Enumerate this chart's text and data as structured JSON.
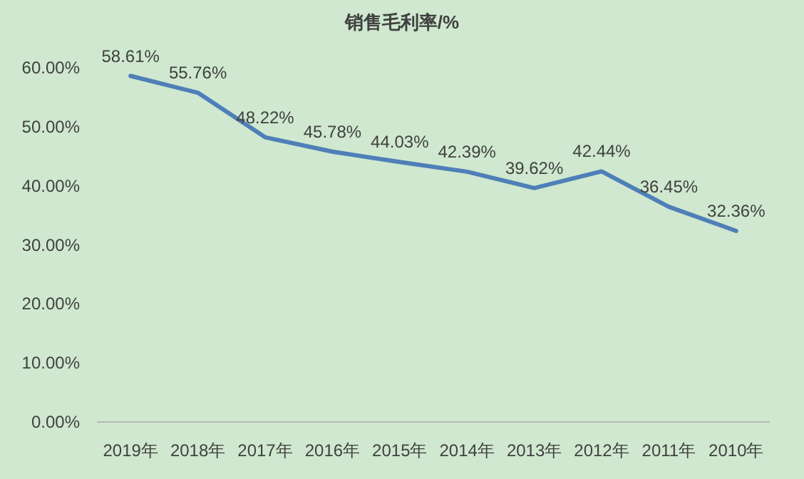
{
  "chart_data": {
    "type": "line",
    "title": "销售毛利率/%",
    "categories": [
      "2019年",
      "2018年",
      "2017年",
      "2016年",
      "2015年",
      "2014年",
      "2013年",
      "2012年",
      "2011年",
      "2010年"
    ],
    "values": [
      58.61,
      55.76,
      48.22,
      45.78,
      44.03,
      42.39,
      39.62,
      42.44,
      36.45,
      32.36
    ],
    "value_labels": [
      "58.61%",
      "55.76%",
      "48.22%",
      "45.78%",
      "44.03%",
      "42.39%",
      "39.62%",
      "42.44%",
      "36.45%",
      "32.36%"
    ],
    "color": "#4f7fb8",
    "ylim": [
      0,
      60
    ],
    "yticks": [
      {
        "value": 0,
        "label": "0.00%"
      },
      {
        "value": 10,
        "label": "10.00%"
      },
      {
        "value": 20,
        "label": "20.00%"
      },
      {
        "value": 30,
        "label": "30.00%"
      },
      {
        "value": 40,
        "label": "40.00%"
      },
      {
        "value": 50,
        "label": "50.00%"
      },
      {
        "value": 60,
        "label": "60.00%"
      }
    ],
    "marker": "none",
    "line_style": "solid"
  }
}
